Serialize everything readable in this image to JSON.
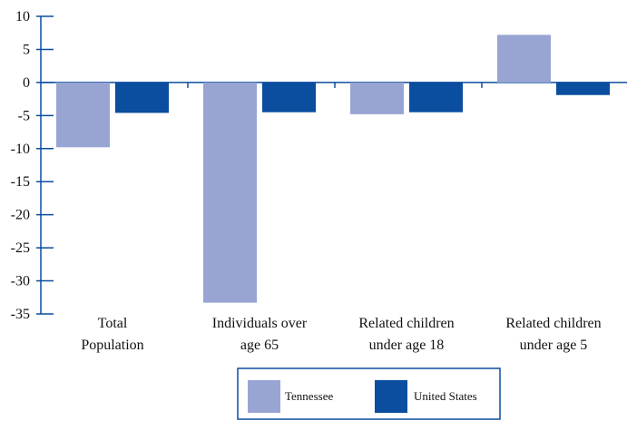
{
  "chart_data": {
    "type": "bar",
    "categories": [
      [
        "Total",
        "Population"
      ],
      [
        "Individuals over",
        "age 65"
      ],
      [
        "Related children",
        "under age 18"
      ],
      [
        "Related children",
        "under age 5"
      ]
    ],
    "series": [
      {
        "name": "Tennessee",
        "color": "#98a5d3",
        "values": [
          -9.8,
          -33.3,
          -4.8,
          7.2
        ]
      },
      {
        "name": "United States",
        "color": "#0b4d9e",
        "values": [
          -4.6,
          -4.5,
          -4.5,
          -1.9
        ]
      }
    ],
    "y_ticks": [
      10,
      5,
      0,
      -5,
      -10,
      -15,
      -20,
      -25,
      -30,
      -35
    ],
    "ylim": [
      -35,
      10
    ],
    "axis_color": "#0b4d9e",
    "legend_position": "bottom-center"
  }
}
